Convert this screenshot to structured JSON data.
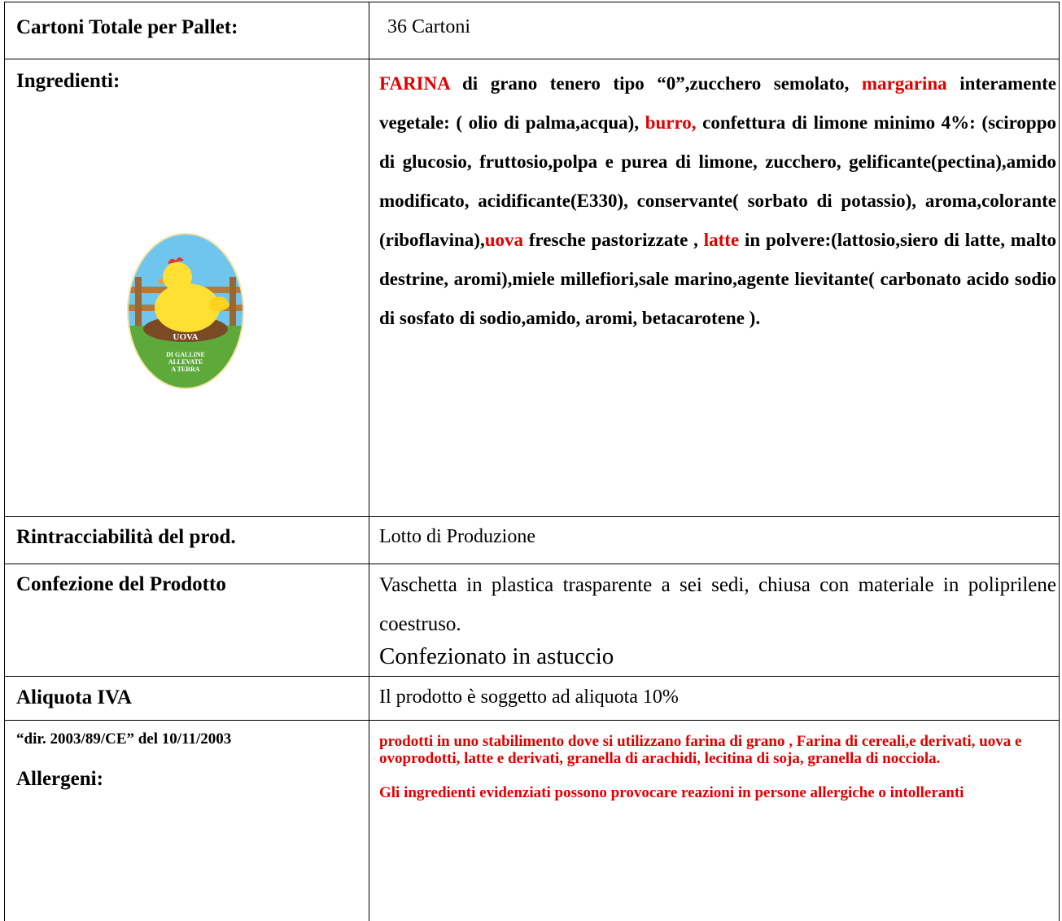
{
  "table": {
    "rows": [
      {
        "label": "Cartoni Totale per Pallet:",
        "value": "36 Cartoni"
      },
      {
        "label": "Ingredienti:",
        "logo": {
          "title": "UOVA",
          "subtitle": [
            "DI GALLINE",
            "ALLEVATE",
            "A TERRA"
          ]
        },
        "segments": [
          {
            "text": "FARINA",
            "color": "#e00000"
          },
          {
            "text": " di grano tenero tipo “0”,zucchero semolato, ",
            "color": "#000000"
          },
          {
            "text": "margarina",
            "color": "#e00000"
          },
          {
            "text": " interamente vegetale: ( olio di palma,acqua), ",
            "color": "#000000"
          },
          {
            "text": "burro,",
            "color": "#e00000"
          },
          {
            "text": " confettura di limone minimo 4%: (sciroppo di glucosio, fruttosio,polpa e purea di limone, zucchero, gelificante(pectina),amido modificato, acidificante(E330), conservante( sorbato di potassio), aroma,colorante (riboflavina),",
            "color": "#000000"
          },
          {
            "text": "uova",
            "color": "#e00000"
          },
          {
            "text": " fresche pastorizzate , ",
            "color": "#000000"
          },
          {
            "text": "latte",
            "color": "#e00000"
          },
          {
            "text": " in polvere:(lattosio,siero di latte, malto destrine, aromi),miele millefiori,sale marino,agente lievitante( carbonato acido sodio di sosfato di sodio,amido, aromi, betacarotene ).",
            "color": "#000000"
          }
        ]
      },
      {
        "label": "Rintracciabilità del prod.",
        "value": "Lotto di Produzione"
      },
      {
        "label": "Confezione del Prodotto",
        "value": [
          "Vaschetta in plastica trasparente a sei sedi, chiusa con materiale in poliprilene coestruso.",
          "Confezionato in astuccio"
        ]
      },
      {
        "label": "Aliquota IVA",
        "value": "Il prodotto è soggetto ad aliquota  10%"
      },
      {
        "label": [
          "“dir. 2003/89/CE” del 10/11/2003",
          "Allergeni:"
        ],
        "value": [
          "prodotti in uno stabilimento dove si utilizzano farina di grano , Farina di cereali,e derivati,  uova e ovoprodotti, latte e derivati, granella di arachidi, lecitina di soja, granella di nocciola.",
          "Gli ingredienti evidenziati possono provocare reazioni in persone allergiche o intolleranti"
        ]
      }
    ]
  }
}
